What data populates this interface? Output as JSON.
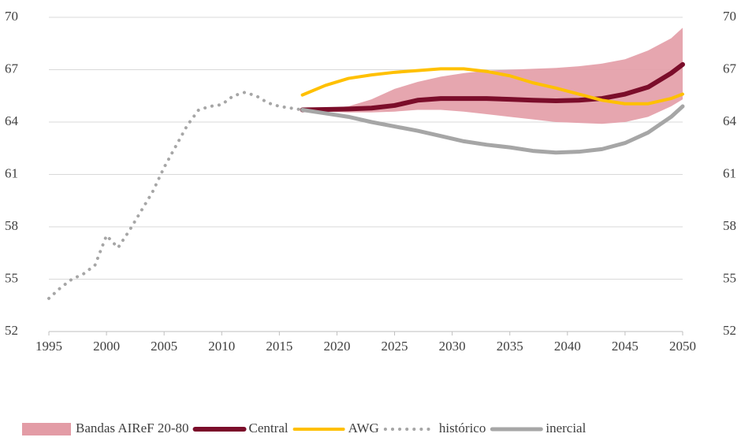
{
  "chart_data": {
    "type": "line",
    "xlim": [
      1995,
      2050
    ],
    "xticks": [
      1995,
      2000,
      2005,
      2010,
      2015,
      2020,
      2025,
      2030,
      2035,
      2040,
      2045,
      2050
    ],
    "ylim": [
      52,
      70
    ],
    "yticks": [
      52,
      55,
      58,
      61,
      64,
      67,
      70
    ],
    "y2lim": [
      52,
      70
    ],
    "y2ticks": [
      52,
      55,
      58,
      61,
      64,
      67,
      70
    ],
    "grid": true,
    "legend": "bottom",
    "series": [
      {
        "name": "Bandas AIReF 20-80",
        "color": "#e39ca6",
        "kind": "band",
        "x": [
          2017,
          2019,
          2021,
          2023,
          2025,
          2027,
          2029,
          2031,
          2033,
          2035,
          2037,
          2039,
          2041,
          2043,
          2045,
          2047,
          2049,
          2050
        ],
        "lower": [
          64.7,
          64.6,
          64.55,
          64.55,
          64.6,
          64.7,
          64.7,
          64.6,
          64.45,
          64.3,
          64.15,
          64.0,
          63.95,
          63.9,
          64.0,
          64.3,
          64.9,
          65.3
        ],
        "upper": [
          64.7,
          64.8,
          64.9,
          65.3,
          65.9,
          66.3,
          66.6,
          66.8,
          66.95,
          67.0,
          67.05,
          67.1,
          67.2,
          67.35,
          67.6,
          68.1,
          68.8,
          69.4
        ]
      },
      {
        "name": "Central",
        "color": "#7b0d2a",
        "width": 6,
        "x": [
          2017,
          2019,
          2021,
          2023,
          2025,
          2027,
          2029,
          2031,
          2033,
          2035,
          2037,
          2039,
          2041,
          2043,
          2045,
          2047,
          2049,
          2050
        ],
        "values": [
          64.7,
          64.72,
          64.75,
          64.8,
          64.95,
          65.25,
          65.35,
          65.35,
          65.35,
          65.3,
          65.25,
          65.22,
          65.25,
          65.35,
          65.6,
          66.0,
          66.8,
          67.3
        ]
      },
      {
        "name": "AWG",
        "color": "#ffc000",
        "width": 4,
        "x": [
          2017,
          2019,
          2021,
          2023,
          2025,
          2027,
          2029,
          2031,
          2033,
          2035,
          2037,
          2039,
          2041,
          2043,
          2045,
          2047,
          2049,
          2050
        ],
        "values": [
          65.55,
          66.1,
          66.5,
          66.7,
          66.85,
          66.95,
          67.05,
          67.05,
          66.9,
          66.65,
          66.25,
          65.95,
          65.6,
          65.25,
          65.05,
          65.05,
          65.35,
          65.6
        ]
      },
      {
        "name": "histórico",
        "color": "#a6a6a6",
        "width": 4,
        "style": "dotted",
        "x": [
          1995,
          1996,
          1997,
          1998,
          1999,
          2000,
          2001,
          2002,
          2003,
          2004,
          2005,
          2006,
          2007,
          2008,
          2009,
          2010,
          2011,
          2012,
          2013,
          2014,
          2015,
          2016,
          2017
        ],
        "values": [
          53.9,
          54.5,
          55.0,
          55.3,
          55.8,
          57.5,
          56.8,
          57.8,
          58.9,
          60.0,
          61.4,
          62.6,
          63.8,
          64.7,
          64.9,
          65.0,
          65.5,
          65.7,
          65.5,
          65.1,
          64.9,
          64.8,
          64.7
        ]
      },
      {
        "name": "inercial",
        "color": "#a6a6a6",
        "width": 5,
        "x": [
          2017,
          2019,
          2021,
          2023,
          2025,
          2027,
          2029,
          2031,
          2033,
          2035,
          2037,
          2039,
          2041,
          2043,
          2045,
          2047,
          2049,
          2050
        ],
        "values": [
          64.7,
          64.5,
          64.3,
          64.0,
          63.75,
          63.5,
          63.2,
          62.9,
          62.7,
          62.55,
          62.35,
          62.25,
          62.3,
          62.45,
          62.8,
          63.4,
          64.3,
          64.9
        ]
      }
    ]
  }
}
